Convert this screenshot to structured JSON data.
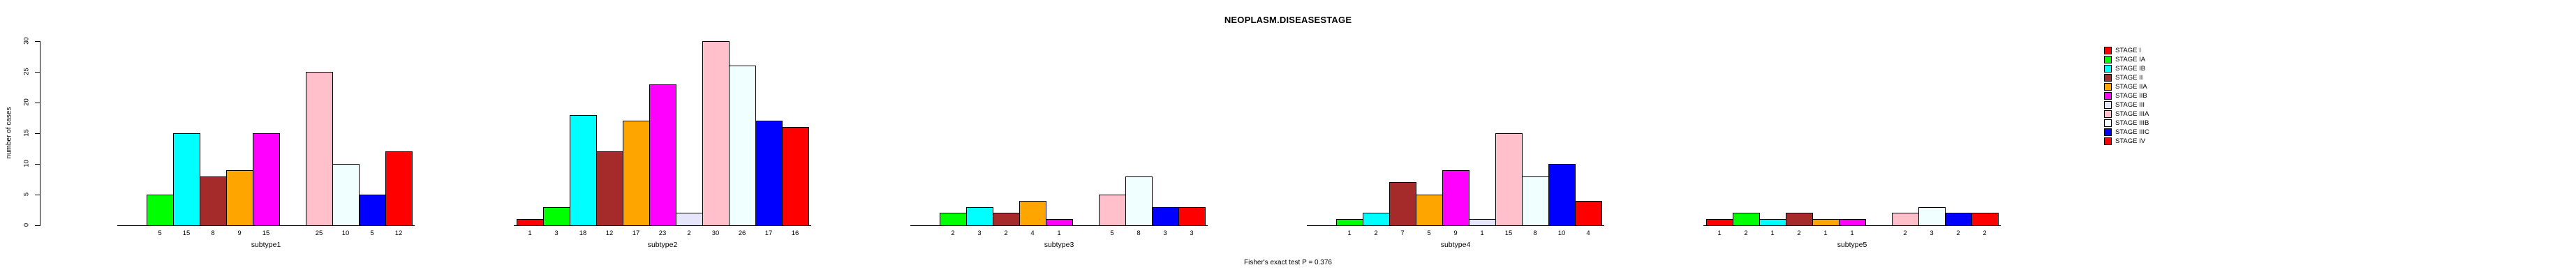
{
  "chart_data": {
    "type": "bar",
    "title": "NEOPLASM.DISEASESTAGE",
    "ylabel": "number of cases",
    "annotation": "Fisher's exact test P = 0.376",
    "ylim": [
      0,
      30
    ],
    "yticks": [
      0,
      5,
      10,
      15,
      20,
      25,
      30
    ],
    "grid": false,
    "legend_position": "right",
    "bar_labels": "values shown under each nonzero bar",
    "categories": [
      "subtype1",
      "subtype2",
      "subtype3",
      "subtype4",
      "subtype5"
    ],
    "series": [
      {
        "name": "STAGE I",
        "color": "#FF0000",
        "values": [
          0,
          1,
          0,
          0,
          1
        ]
      },
      {
        "name": "STAGE IA",
        "color": "#00FF00",
        "values": [
          5,
          3,
          2,
          1,
          2
        ]
      },
      {
        "name": "STAGE IB",
        "color": "#00FFFF",
        "values": [
          15,
          18,
          3,
          2,
          1
        ]
      },
      {
        "name": "STAGE II",
        "color": "#A52A2A",
        "values": [
          8,
          12,
          2,
          7,
          2
        ]
      },
      {
        "name": "STAGE IIA",
        "color": "#FFA500",
        "values": [
          9,
          17,
          4,
          5,
          1
        ]
      },
      {
        "name": "STAGE IIB",
        "color": "#FF00FF",
        "values": [
          15,
          23,
          1,
          9,
          1
        ]
      },
      {
        "name": "STAGE III",
        "color": "#E6E6FA",
        "values": [
          0,
          2,
          0,
          1,
          0
        ]
      },
      {
        "name": "STAGE IIIA",
        "color": "#FFC0CB",
        "values": [
          25,
          30,
          5,
          15,
          2
        ]
      },
      {
        "name": "STAGE IIIB",
        "color": "#F0FFFF",
        "values": [
          10,
          26,
          8,
          8,
          3
        ]
      },
      {
        "name": "STAGE IIIC",
        "color": "#0000FF",
        "values": [
          5,
          17,
          3,
          10,
          2
        ]
      },
      {
        "name": "STAGE IV",
        "color": "#FF0000",
        "values": [
          12,
          16,
          3,
          4,
          2
        ]
      }
    ]
  }
}
